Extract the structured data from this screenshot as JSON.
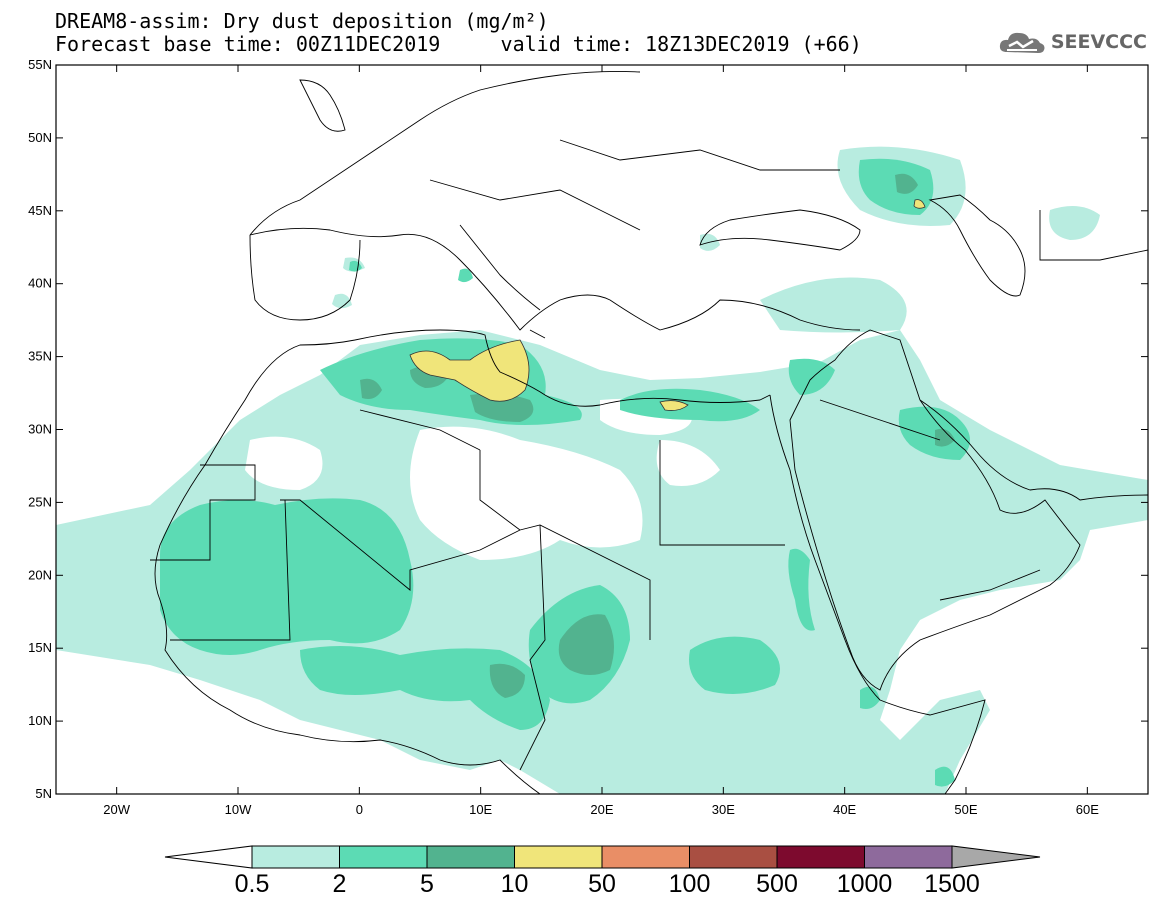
{
  "header": {
    "line1": "DREAM8-assim: Dry dust deposition (mg/m²)",
    "line2_base": "Forecast base time: 00Z11DEC2019",
    "line2_valid": "valid time: 18Z13DEC2019 (+66)"
  },
  "logo": {
    "text": "SEEVCCC",
    "icon": "cloud-icon"
  },
  "map": {
    "lon_range": [
      -25,
      65
    ],
    "lat_range": [
      5,
      55
    ],
    "lat_ticks": [
      "55N",
      "50N",
      "45N",
      "40N",
      "35N",
      "30N",
      "25N",
      "20N",
      "15N",
      "10N",
      "5N"
    ],
    "lon_ticks": [
      "20W",
      "10W",
      "0",
      "10E",
      "20E",
      "30E",
      "40E",
      "50E",
      "60E"
    ]
  },
  "colorbar": {
    "labels": [
      "0.5",
      "2",
      "5",
      "10",
      "50",
      "100",
      "500",
      "1000",
      "1500"
    ],
    "colors": [
      "#b8ece0",
      "#5cdbb4",
      "#52b38f",
      "#f0e57a",
      "#e98e66",
      "#a94f42",
      "#7d0a2e",
      "#8e6a9c"
    ],
    "over_color": "#a8a8a8",
    "under_color": "#ffffff"
  }
}
